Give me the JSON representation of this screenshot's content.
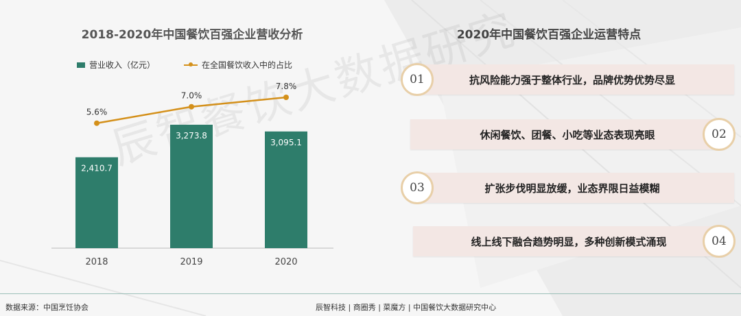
{
  "left_title": "2018-2020年中国餐饮百强企业营收分析",
  "right_title": "2020年中国餐饮百强企业运营特点",
  "watermark": "辰智餐饮大数据研究",
  "legend": {
    "bar_label": "营业收入（亿元）",
    "line_label": "在全国餐饮收入中的占比"
  },
  "chart_data": {
    "type": "bar",
    "categories": [
      "2018",
      "2019",
      "2020"
    ],
    "series": [
      {
        "name": "营业收入（亿元）",
        "type": "bar",
        "values": [
          2410.7,
          3273.8,
          3095.1
        ],
        "labels": [
          "2,410.7",
          "3,273.8",
          "3,095.1"
        ],
        "color": "#2e7d6b"
      },
      {
        "name": "在全国餐饮收入中的占比",
        "type": "line",
        "values": [
          5.6,
          7.0,
          7.8
        ],
        "labels": [
          "5.6%",
          "7.0%",
          "7.8%"
        ],
        "color": "#d4901a"
      }
    ],
    "ylim": [
      0,
      4000
    ],
    "y2lim": [
      0,
      11
    ],
    "grid": false,
    "legend_position": "top-left"
  },
  "features": [
    {
      "num": "01",
      "text": "抗风险能力强于整体行业，品牌优势优势尽显"
    },
    {
      "num": "02",
      "text": "休闲餐饮、团餐、小吃等业态表现亮眼"
    },
    {
      "num": "03",
      "text": "扩张步伐明显放缓，业态界限日益模糊"
    },
    {
      "num": "04",
      "text": "线上线下融合趋势明显，多种创新模式涌现"
    }
  ],
  "footer": {
    "source": "数据来源：中国烹饪协会",
    "credits": "辰智科技 | 商圈秀 | 菜魔方 | 中国餐饮大数据研究中心"
  }
}
